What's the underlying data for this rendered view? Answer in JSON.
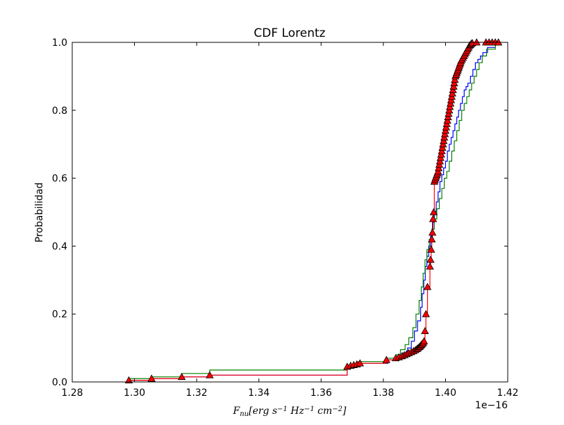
{
  "chart_data": {
    "type": "line",
    "title": "CDF Lorentz",
    "ylabel": "Probabilidad",
    "xlabel": "F_nu[erg s^-1 Hz^-1 cm^-2]",
    "x_offset_label": "1e−16",
    "xlim": [
      1.28,
      1.42
    ],
    "ylim": [
      0.0,
      1.0
    ],
    "x_ticks": [
      1.28,
      1.3,
      1.32,
      1.34,
      1.36,
      1.38,
      1.4,
      1.42
    ],
    "x_tick_labels": [
      "1.28",
      "1.30",
      "1.32",
      "1.34",
      "1.36",
      "1.38",
      "1.40",
      "1.42"
    ],
    "y_ticks": [
      0.0,
      0.2,
      0.4,
      0.6,
      0.8,
      1.0
    ],
    "y_tick_labels": [
      "0.0",
      "0.2",
      "0.4",
      "0.6",
      "0.8",
      "1.0"
    ],
    "grid": false,
    "series": [
      {
        "color": "#0000ff",
        "step": true,
        "markers": false,
        "x": [
          1.2982,
          1.3055,
          1.3152,
          1.3242,
          1.3684,
          1.3705,
          1.3723,
          1.3815,
          1.3848,
          1.3862,
          1.3878,
          1.389,
          1.39,
          1.391,
          1.392,
          1.3925,
          1.393,
          1.3935,
          1.394,
          1.3946,
          1.3952,
          1.3958,
          1.3964,
          1.397,
          1.3976,
          1.3982,
          1.3988,
          1.3994,
          1.4,
          1.4006,
          1.4012,
          1.4018,
          1.4024,
          1.403,
          1.4036,
          1.4042,
          1.4048,
          1.4054,
          1.406,
          1.4066,
          1.4072,
          1.408,
          1.4088,
          1.4096,
          1.4104,
          1.4112,
          1.412,
          1.4135,
          1.416
        ],
        "y": [
          0.005,
          0.01,
          0.015,
          0.02,
          0.04,
          0.05,
          0.055,
          0.065,
          0.075,
          0.085,
          0.1,
          0.12,
          0.15,
          0.18,
          0.22,
          0.26,
          0.3,
          0.34,
          0.37,
          0.4,
          0.44,
          0.47,
          0.5,
          0.53,
          0.56,
          0.59,
          0.61,
          0.63,
          0.65,
          0.68,
          0.7,
          0.72,
          0.74,
          0.76,
          0.78,
          0.8,
          0.82,
          0.84,
          0.86,
          0.87,
          0.88,
          0.9,
          0.92,
          0.94,
          0.95,
          0.96,
          0.97,
          0.985,
          1.0
        ]
      },
      {
        "color": "#008000",
        "step": true,
        "markers": false,
        "x": [
          1.2982,
          1.3055,
          1.3152,
          1.3242,
          1.3684,
          1.372,
          1.381,
          1.384,
          1.3855,
          1.387,
          1.3882,
          1.3895,
          1.3905,
          1.3915,
          1.3922,
          1.3928,
          1.3934,
          1.394,
          1.3948,
          1.3956,
          1.3964,
          1.3972,
          1.398,
          1.3988,
          1.3996,
          1.4004,
          1.4012,
          1.402,
          1.4028,
          1.4036,
          1.4044,
          1.4052,
          1.406,
          1.4068,
          1.4076,
          1.4084,
          1.4092,
          1.41,
          1.4108,
          1.4118,
          1.4132,
          1.416
        ],
        "y": [
          0.01,
          0.015,
          0.025,
          0.035,
          0.045,
          0.06,
          0.07,
          0.08,
          0.095,
          0.11,
          0.13,
          0.16,
          0.2,
          0.24,
          0.28,
          0.32,
          0.36,
          0.39,
          0.42,
          0.45,
          0.48,
          0.51,
          0.54,
          0.57,
          0.6,
          0.62,
          0.65,
          0.68,
          0.71,
          0.74,
          0.77,
          0.8,
          0.82,
          0.84,
          0.86,
          0.88,
          0.9,
          0.92,
          0.94,
          0.96,
          0.98,
          1.0
        ]
      },
      {
        "color": "#ff0000",
        "step": true,
        "markers": true,
        "marker_fill": "#ff0000",
        "marker_edge": "#000000",
        "x": [
          1.2982,
          1.3055,
          1.3152,
          1.3242,
          1.3684,
          1.3695,
          1.3705,
          1.3715,
          1.3725,
          1.381,
          1.384,
          1.385,
          1.386,
          1.3868,
          1.3875,
          1.3882,
          1.389,
          1.3897,
          1.3903,
          1.3908,
          1.3912,
          1.3916,
          1.3919,
          1.3922,
          1.3925,
          1.3928,
          1.3931,
          1.3934,
          1.3937,
          1.3942,
          1.395,
          1.3952,
          1.3954,
          1.3956,
          1.3958,
          1.396,
          1.3962,
          1.3964,
          1.3966,
          1.3968,
          1.397,
          1.3972,
          1.3974,
          1.3976,
          1.3978,
          1.398,
          1.3982,
          1.3984,
          1.3986,
          1.3988,
          1.399,
          1.3992,
          1.3994,
          1.3996,
          1.3998,
          1.4,
          1.4002,
          1.4004,
          1.4006,
          1.4008,
          1.401,
          1.4012,
          1.4014,
          1.4016,
          1.4018,
          1.402,
          1.4022,
          1.4024,
          1.4026,
          1.4028,
          1.403,
          1.4032,
          1.4034,
          1.4036,
          1.4038,
          1.404,
          1.4042,
          1.4044,
          1.4046,
          1.4048,
          1.405,
          1.4053,
          1.4056,
          1.4059,
          1.4062,
          1.4065,
          1.4068,
          1.4071,
          1.4074,
          1.4077,
          1.408,
          1.4083,
          1.4086,
          1.41,
          1.413,
          1.414,
          1.415,
          1.416,
          1.417
        ],
        "y": [
          0.005,
          0.01,
          0.015,
          0.02,
          0.045,
          0.048,
          0.05,
          0.052,
          0.055,
          0.065,
          0.07,
          0.073,
          0.076,
          0.079,
          0.082,
          0.085,
          0.088,
          0.091,
          0.094,
          0.097,
          0.1,
          0.103,
          0.106,
          0.109,
          0.112,
          0.115,
          0.12,
          0.15,
          0.2,
          0.28,
          0.34,
          0.36,
          0.39,
          0.42,
          0.44,
          0.48,
          0.5,
          0.59,
          0.595,
          0.6,
          0.605,
          0.61,
          0.615,
          0.62,
          0.63,
          0.64,
          0.65,
          0.66,
          0.67,
          0.68,
          0.69,
          0.7,
          0.71,
          0.72,
          0.73,
          0.74,
          0.75,
          0.76,
          0.77,
          0.78,
          0.79,
          0.8,
          0.81,
          0.82,
          0.83,
          0.84,
          0.85,
          0.86,
          0.87,
          0.88,
          0.89,
          0.9,
          0.905,
          0.91,
          0.915,
          0.92,
          0.925,
          0.93,
          0.935,
          0.94,
          0.945,
          0.95,
          0.955,
          0.96,
          0.965,
          0.97,
          0.975,
          0.98,
          0.985,
          0.99,
          0.993,
          0.996,
          0.998,
          1.0,
          1.0,
          1.0,
          1.0,
          1.0,
          1.0
        ]
      }
    ]
  }
}
